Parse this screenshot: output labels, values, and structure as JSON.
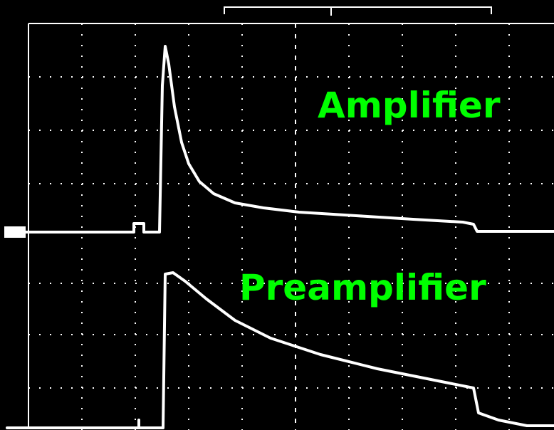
{
  "labels": {
    "amplifier": "Amplifier",
    "preamplifier": "Preamplifier"
  }
}
